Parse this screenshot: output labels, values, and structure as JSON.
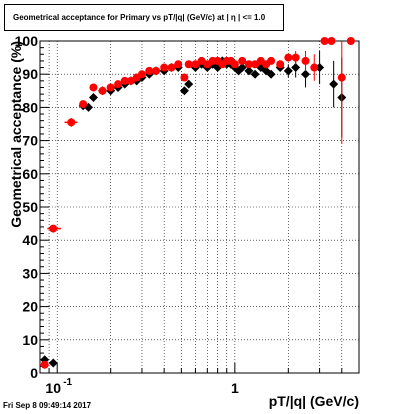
{
  "header": {
    "title": "Geometrical acceptance for Primary vs pT/|q| (GeV/c) at | η | <= 1.0"
  },
  "footer": {
    "timestamp": "Fri Sep  8 09:49:14 2017"
  },
  "chart_data": {
    "type": "scatter",
    "title": "Geometrical acceptance for Primary vs pT/|q| (GeV/c) at | η | <= 1.0",
    "xlabel": "pT/|q| (GeV/c)",
    "ylabel": "Geometrical acceptance (%)",
    "x_scale": "log",
    "xlim": [
      0.08,
      5.0
    ],
    "ylim": [
      0,
      100
    ],
    "grid": true,
    "x_ticks": [
      {
        "value": 0.1,
        "label": "10",
        "exp": "-1"
      },
      {
        "value": 1,
        "label": "1",
        "exp": ""
      }
    ],
    "y_ticks": [
      0,
      10,
      20,
      30,
      40,
      50,
      60,
      70,
      80,
      90,
      100
    ],
    "series": [
      {
        "color": "#000000",
        "marker": "diamond",
        "x": [
          0.085,
          0.095,
          0.12,
          0.14,
          0.15,
          0.16,
          0.18,
          0.2,
          0.22,
          0.24,
          0.26,
          0.28,
          0.3,
          0.33,
          0.36,
          0.4,
          0.44,
          0.48,
          0.52,
          0.55,
          0.6,
          0.65,
          0.7,
          0.75,
          0.8,
          0.85,
          0.9,
          0.95,
          1.0,
          1.05,
          1.1,
          1.2,
          1.3,
          1.4,
          1.5,
          1.6,
          1.8,
          2.0,
          2.2,
          2.5,
          3.0,
          3.6,
          4.0
        ],
        "y": [
          4,
          3,
          75.5,
          80.5,
          80,
          83,
          85,
          85,
          86,
          87,
          88,
          88,
          89,
          90,
          91,
          91,
          92,
          92,
          85,
          87,
          92,
          93,
          92,
          93,
          92,
          94,
          93,
          93,
          92,
          91,
          92,
          91,
          90,
          92,
          91,
          90,
          92,
          91,
          92,
          90,
          92,
          87,
          83
        ],
        "yerr": [
          0,
          0,
          0,
          0,
          0,
          0,
          0,
          0,
          0,
          0,
          0,
          0,
          0,
          0,
          0,
          0,
          0,
          0,
          0,
          0,
          0,
          0,
          0,
          0,
          0,
          0,
          0,
          0,
          0,
          0,
          0,
          0,
          0,
          0,
          0,
          0,
          0,
          2,
          3,
          4,
          5,
          7,
          12
        ]
      },
      {
        "color": "#ff0000",
        "marker": "circle",
        "x": [
          0.085,
          0.095,
          0.12,
          0.14,
          0.16,
          0.18,
          0.2,
          0.22,
          0.24,
          0.26,
          0.28,
          0.3,
          0.33,
          0.36,
          0.4,
          0.44,
          0.48,
          0.52,
          0.55,
          0.6,
          0.65,
          0.7,
          0.75,
          0.8,
          0.85,
          0.9,
          0.95,
          1.0,
          1.1,
          1.2,
          1.3,
          1.4,
          1.5,
          1.6,
          1.8,
          2.0,
          2.2,
          2.5,
          2.8,
          3.2,
          3.5,
          4.0,
          4.5
        ],
        "y": [
          2.5,
          43.5,
          75.5,
          81,
          86,
          85,
          86,
          87,
          88,
          88,
          89,
          90,
          91,
          91,
          92,
          92,
          93,
          89,
          93,
          93,
          94,
          93,
          94,
          94,
          93,
          94,
          94,
          93,
          94,
          93,
          93,
          94,
          93,
          94,
          93,
          95,
          95,
          94,
          92,
          100,
          100,
          89,
          100
        ],
        "yerr": [
          0,
          0,
          0,
          0,
          0,
          0,
          0,
          0,
          0,
          0,
          0,
          0,
          0,
          0,
          0,
          0,
          0,
          0,
          0,
          0,
          0,
          0,
          0,
          0,
          0,
          0,
          0,
          0,
          0,
          0,
          0,
          0,
          0,
          0,
          0,
          0,
          2,
          3,
          4,
          0,
          0,
          20,
          0
        ]
      }
    ]
  }
}
